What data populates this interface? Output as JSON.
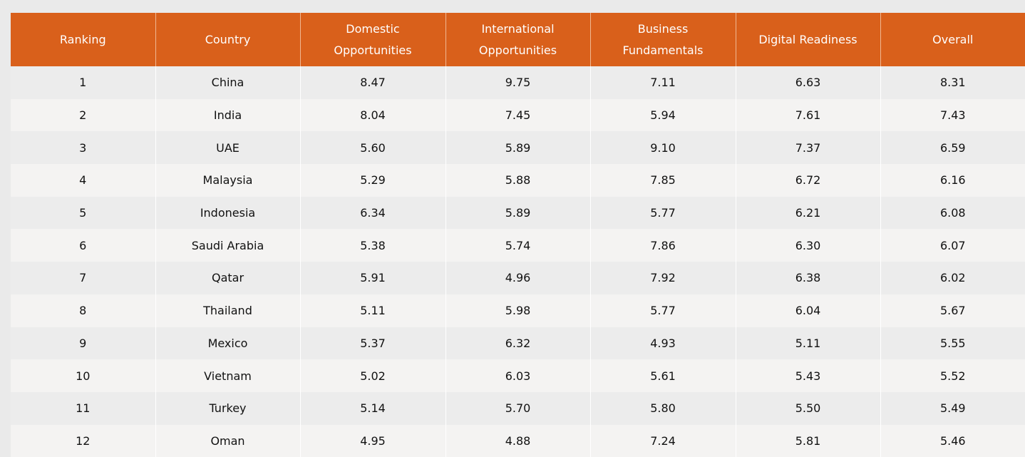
{
  "table": {
    "headers": [
      "Ranking",
      "Country",
      "Domestic Opportunities",
      "International Opportunities",
      "Business Fundamentals",
      "Digital Readiness",
      "Overall"
    ],
    "rows": [
      [
        "1",
        "China",
        "8.47",
        "9.75",
        "7.11",
        "6.63",
        "8.31"
      ],
      [
        "2",
        "India",
        "8.04",
        "7.45",
        "5.94",
        "7.61",
        "7.43"
      ],
      [
        "3",
        "UAE",
        "5.60",
        "5.89",
        "9.10",
        "7.37",
        "6.59"
      ],
      [
        "4",
        "Malaysia",
        "5.29",
        "5.88",
        "7.85",
        "6.72",
        "6.16"
      ],
      [
        "5",
        "Indonesia",
        "6.34",
        "5.89",
        "5.77",
        "6.21",
        "6.08"
      ],
      [
        "6",
        "Saudi Arabia",
        "5.38",
        "5.74",
        "7.86",
        "6.30",
        "6.07"
      ],
      [
        "7",
        "Qatar",
        "5.91",
        "4.96",
        "7.92",
        "6.38",
        "6.02"
      ],
      [
        "8",
        "Thailand",
        "5.11",
        "5.98",
        "5.77",
        "6.04",
        "5.67"
      ],
      [
        "9",
        "Mexico",
        "5.37",
        "6.32",
        "4.93",
        "5.11",
        "5.55"
      ],
      [
        "10",
        "Vietnam",
        "5.02",
        "6.03",
        "5.61",
        "5.43",
        "5.52"
      ],
      [
        "11",
        "Turkey",
        "5.14",
        "5.70",
        "5.80",
        "5.50",
        "5.49"
      ],
      [
        "12",
        "Oman",
        "4.95",
        "4.88",
        "7.24",
        "5.81",
        "5.46"
      ]
    ]
  },
  "colors": {
    "header_bg": "#d9601b",
    "header_text": "#ffffff",
    "row_odd": "#ececec",
    "row_even": "#f4f3f2"
  }
}
